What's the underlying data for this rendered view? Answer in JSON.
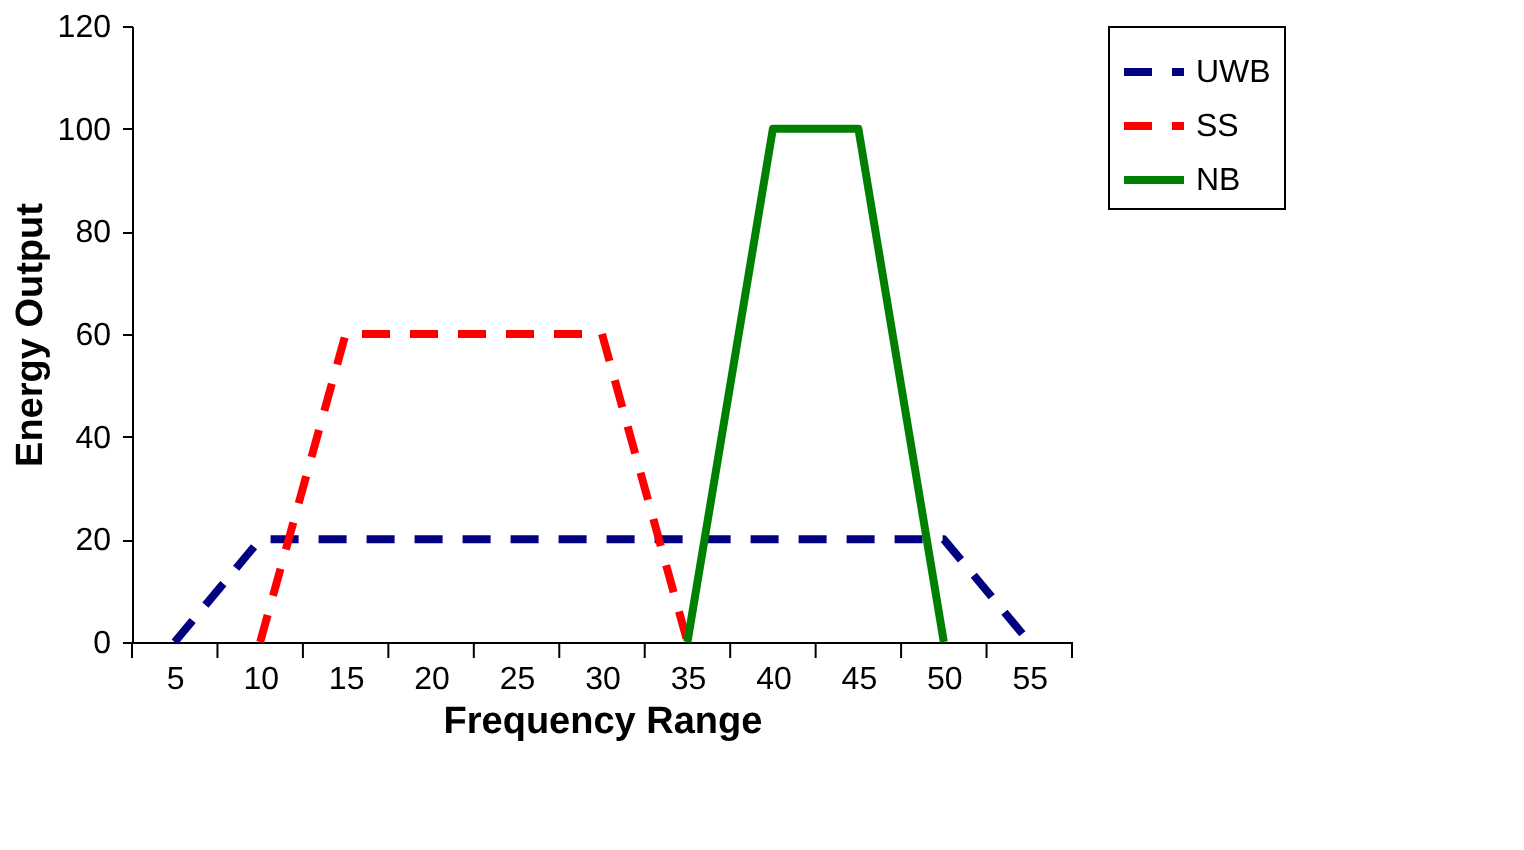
{
  "chart_data": {
    "type": "line",
    "xlabel": "Frequency Range",
    "ylabel": "Energy Output",
    "categories": [
      "5",
      "10",
      "15",
      "20",
      "25",
      "30",
      "35",
      "40",
      "45",
      "50",
      "55"
    ],
    "ylim": [
      0,
      120
    ],
    "yticks": [
      0,
      20,
      40,
      60,
      80,
      100,
      120
    ],
    "grid": false,
    "legend": "right",
    "marker": "none",
    "series": [
      {
        "name": "UWB",
        "color": "#000080",
        "line_style": "dashed",
        "values": [
          0,
          20,
          20,
          20,
          20,
          20,
          20,
          20,
          20,
          20,
          0
        ]
      },
      {
        "name": "SS",
        "color": "#ff0000",
        "line_style": "dashed",
        "values": [
          null,
          0,
          60,
          60,
          60,
          60,
          0,
          null,
          null,
          null,
          null
        ]
      },
      {
        "name": "NB",
        "color": "#008000",
        "line_style": "solid",
        "values": [
          null,
          null,
          null,
          null,
          null,
          null,
          0,
          100,
          100,
          0,
          null
        ]
      }
    ]
  }
}
